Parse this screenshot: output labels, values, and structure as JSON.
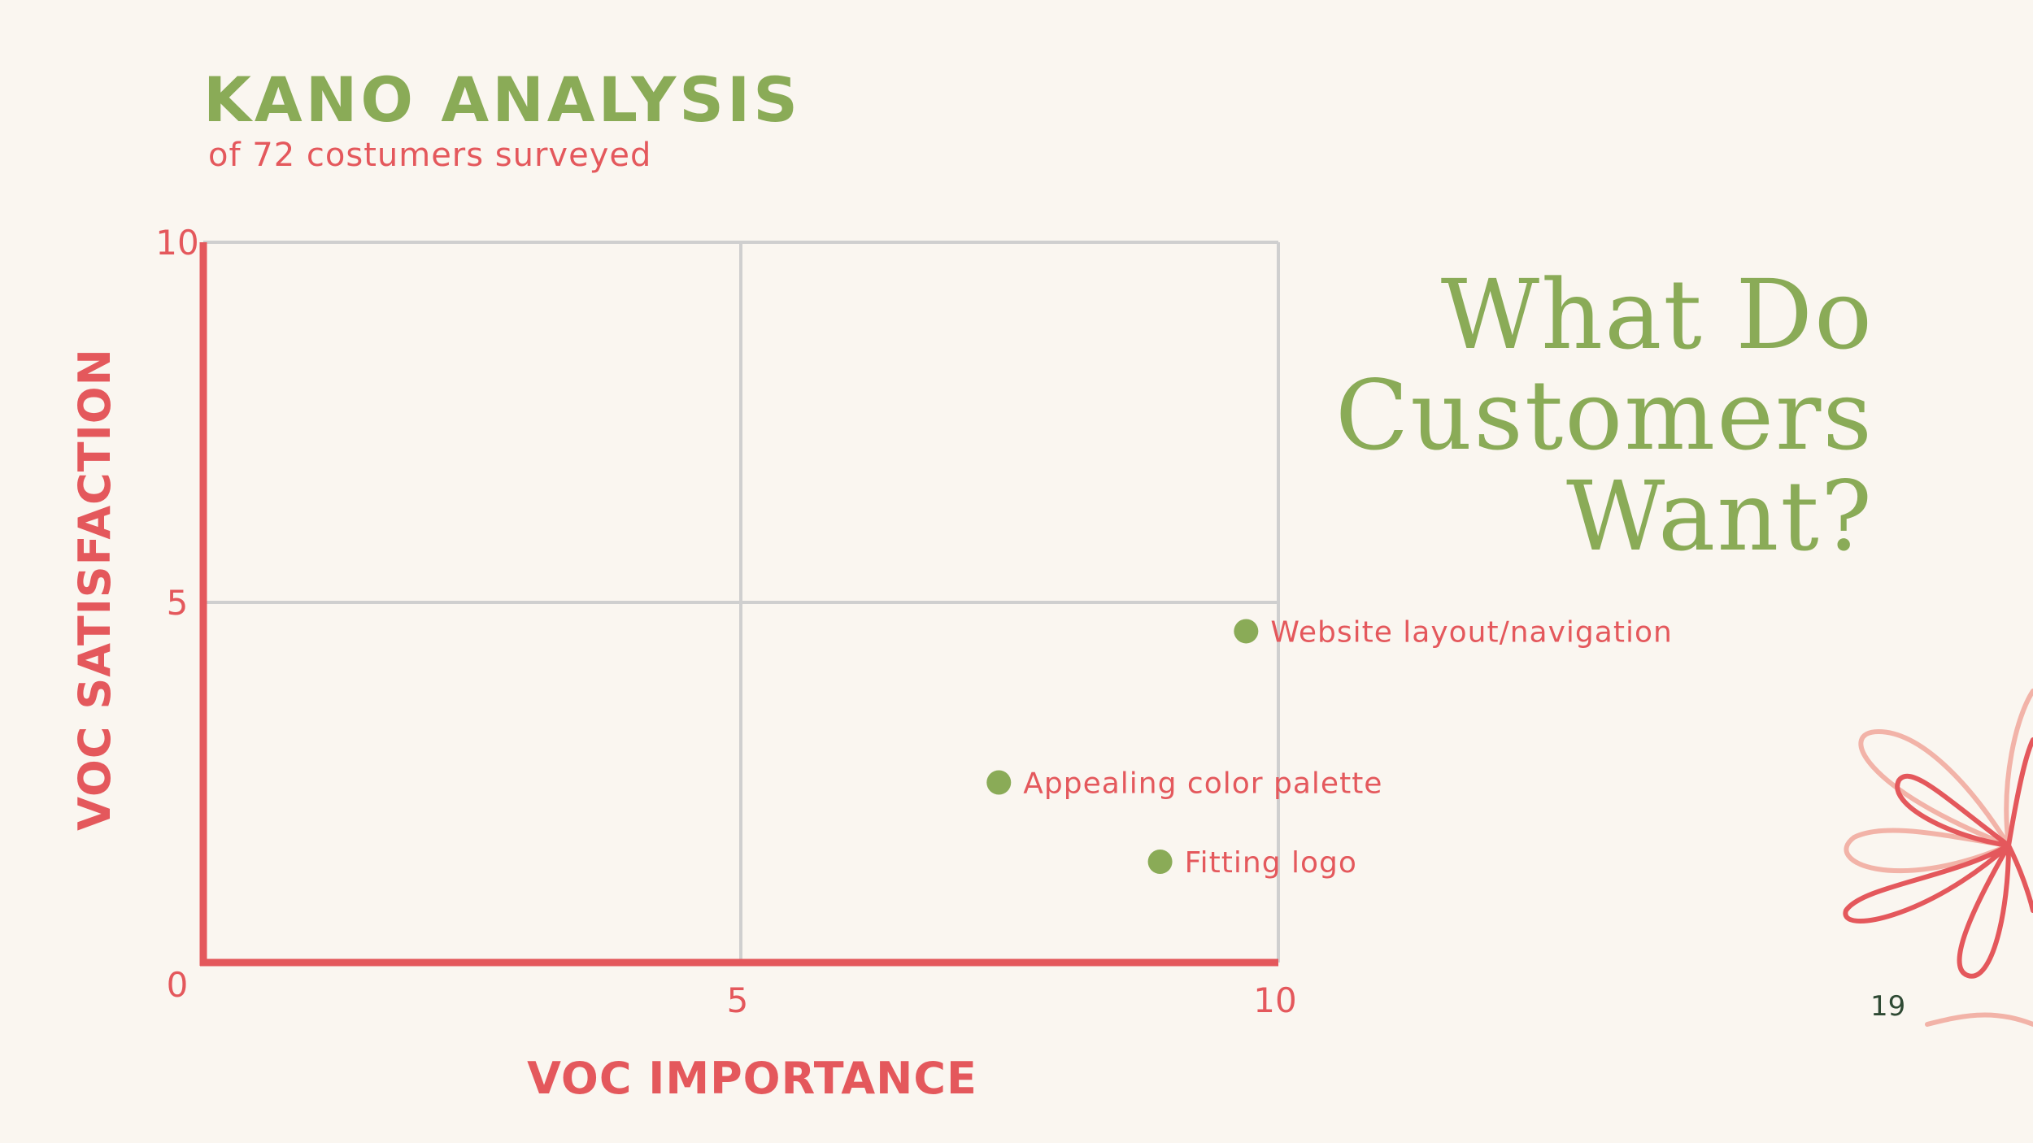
{
  "slide": {
    "title": "KANO ANALYSIS",
    "subtitle": "of 72 costumers surveyed",
    "headline_lines": [
      "What Do",
      "Customers",
      "Want?"
    ],
    "page_number": "19"
  },
  "colors": {
    "green": "#8aab57",
    "coral": "#e4585c",
    "grid": "#cfcfcf",
    "background": "#faf6f0"
  },
  "chart_data": {
    "type": "scatter",
    "xlabel": "VOC IMPORTANCE",
    "ylabel": "VOC SATISFACTION",
    "xlim": [
      0,
      10
    ],
    "ylim": [
      0,
      10
    ],
    "x_ticks": [
      "5",
      "10"
    ],
    "y_ticks": [
      "0",
      "5",
      "10"
    ],
    "grid": true,
    "points": [
      {
        "label": "Website layout/navigation",
        "x": 9.7,
        "y": 4.6
      },
      {
        "label": "Appealing color palette",
        "x": 7.4,
        "y": 2.5
      },
      {
        "label": "Fitting logo",
        "x": 8.9,
        "y": 1.4
      }
    ]
  }
}
